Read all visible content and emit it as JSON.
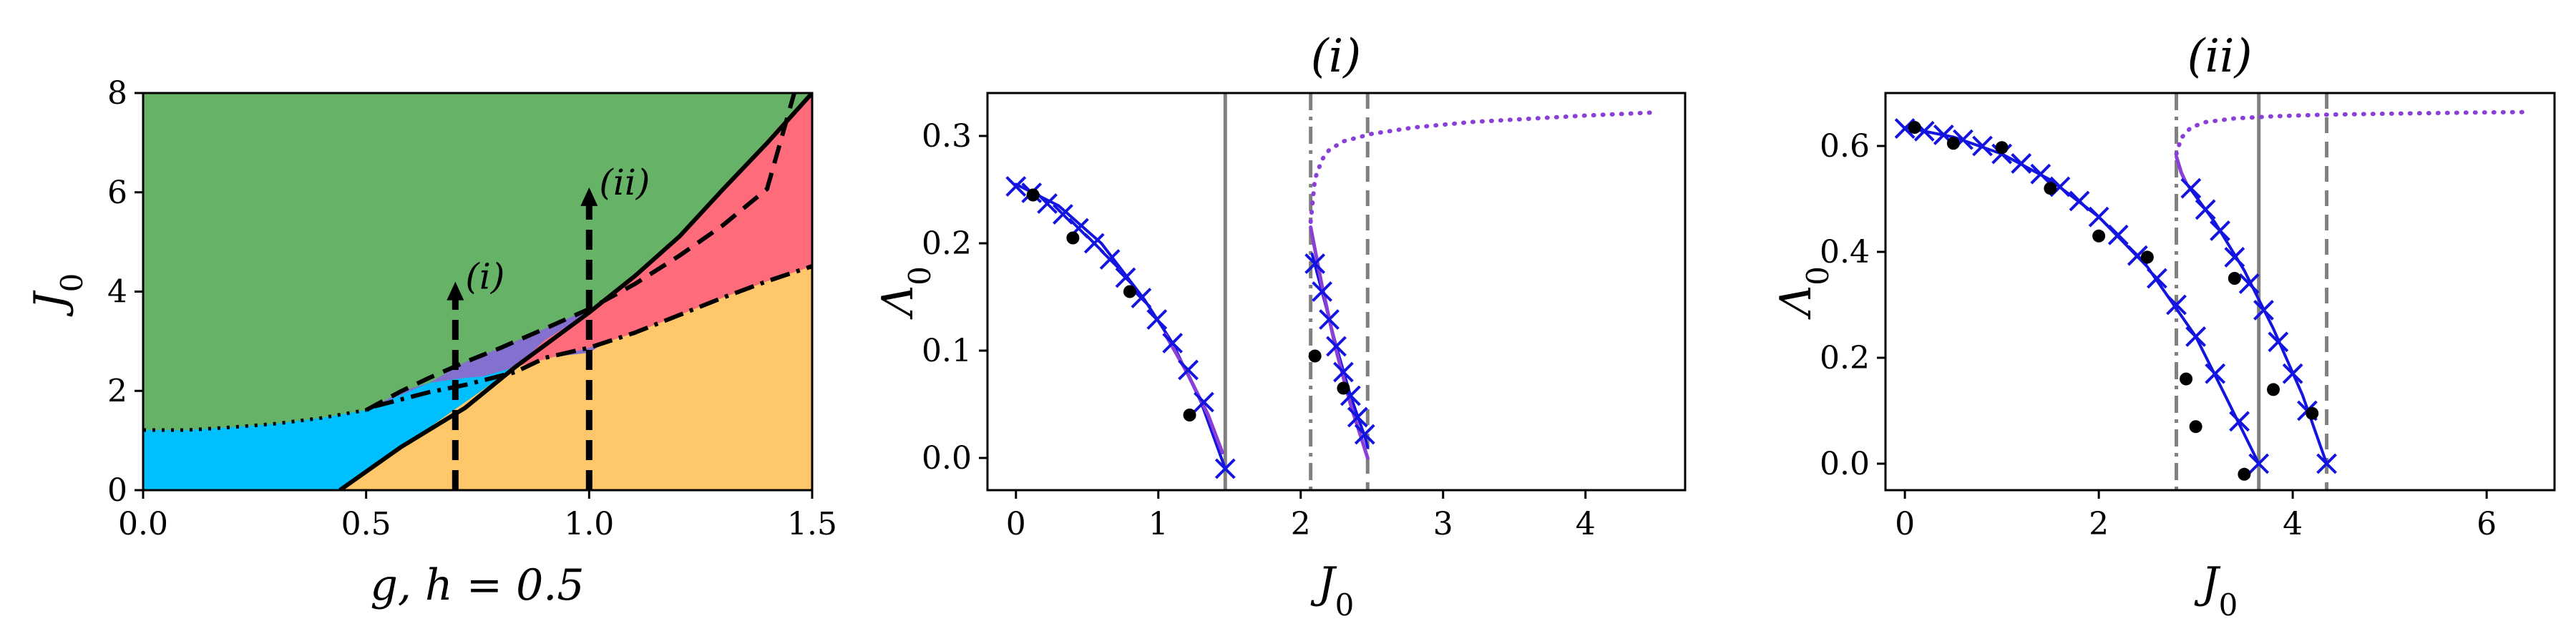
{
  "chart_data": [
    {
      "type": "area",
      "xlabel": "g, h = 0.5",
      "ylabel": "J_0",
      "xlim": [
        0.0,
        1.5
      ],
      "ylim": [
        0,
        8
      ],
      "xticks": [
        "0.0",
        "0.5",
        "1.0",
        "1.5"
      ],
      "yticks": [
        "0",
        "2",
        "4",
        "6",
        "8"
      ],
      "colors": {
        "green": "#66b266",
        "blue": "#00bfff",
        "orange": "#fdc76a",
        "red": "#fe6b7a",
        "purple": "#8470cf"
      },
      "annotations": [
        {
          "label": "(i)",
          "x": 0.7,
          "y_start": 0,
          "y_end": 4.2
        },
        {
          "label": "(ii)",
          "x": 1.0,
          "y_start": 0,
          "y_end": 6.1
        }
      ]
    },
    {
      "type": "line",
      "title": "(i)",
      "xlabel": "J_0",
      "ylabel": "Λ_0",
      "xlim": [
        -0.2,
        4.7
      ],
      "ylim": [
        -0.03,
        0.34
      ],
      "xticks": [
        "0",
        "1",
        "2",
        "3",
        "4"
      ],
      "yticks": [
        "0.0",
        "0.1",
        "0.2",
        "0.3"
      ],
      "vlines": [
        {
          "x": 1.47,
          "style": "solid"
        },
        {
          "x": 2.07,
          "style": "dashdot"
        },
        {
          "x": 2.47,
          "style": "dashed"
        }
      ],
      "crosses": [
        {
          "x": 0.0,
          "y": 0.253
        },
        {
          "x": 0.11,
          "y": 0.247
        },
        {
          "x": 0.22,
          "y": 0.237
        },
        {
          "x": 0.33,
          "y": 0.227
        },
        {
          "x": 0.44,
          "y": 0.214
        },
        {
          "x": 0.55,
          "y": 0.2
        },
        {
          "x": 0.66,
          "y": 0.185
        },
        {
          "x": 0.77,
          "y": 0.168
        },
        {
          "x": 0.88,
          "y": 0.149
        },
        {
          "x": 0.99,
          "y": 0.129
        },
        {
          "x": 1.1,
          "y": 0.107
        },
        {
          "x": 1.21,
          "y": 0.082
        },
        {
          "x": 1.32,
          "y": 0.052
        },
        {
          "x": 1.47,
          "y": -0.01
        },
        {
          "x": 2.1,
          "y": 0.181
        },
        {
          "x": 2.15,
          "y": 0.155
        },
        {
          "x": 2.2,
          "y": 0.129
        },
        {
          "x": 2.25,
          "y": 0.104
        },
        {
          "x": 2.3,
          "y": 0.08
        },
        {
          "x": 2.35,
          "y": 0.058
        },
        {
          "x": 2.4,
          "y": 0.038
        },
        {
          "x": 2.45,
          "y": 0.022
        }
      ],
      "dots": [
        {
          "x": 0.12,
          "y": 0.245
        },
        {
          "x": 0.4,
          "y": 0.205
        },
        {
          "x": 0.8,
          "y": 0.155
        },
        {
          "x": 1.22,
          "y": 0.04
        },
        {
          "x": 2.1,
          "y": 0.095
        },
        {
          "x": 2.3,
          "y": 0.065
        }
      ],
      "series": [
        {
          "style": "solid-blue",
          "x": [
            0,
            0.3,
            0.6,
            0.9,
            1.1,
            1.3,
            1.47
          ],
          "y": [
            0.255,
            0.235,
            0.2,
            0.148,
            0.107,
            0.052,
            -0.01
          ]
        },
        {
          "style": "solid-purple",
          "x": [
            1.05,
            1.2,
            1.35,
            1.45
          ],
          "y": [
            0.115,
            0.08,
            0.04,
            0.005
          ]
        },
        {
          "style": "solid-blue",
          "x": [
            2.08,
            2.15,
            2.25,
            2.35,
            2.45,
            2.47
          ],
          "y": [
            0.19,
            0.155,
            0.104,
            0.058,
            0.02,
            0.01
          ]
        },
        {
          "style": "solid-purple",
          "x": [
            2.07,
            2.15,
            2.25,
            2.35,
            2.47
          ],
          "y": [
            0.215,
            0.16,
            0.1,
            0.05,
            0.0
          ]
        },
        {
          "style": "dotted-purple",
          "x": [
            2.07,
            2.1,
            2.15,
            2.2,
            2.3,
            2.5,
            2.8,
            3.2,
            3.6,
            4.0,
            4.5
          ],
          "y": [
            0.22,
            0.26,
            0.278,
            0.287,
            0.295,
            0.302,
            0.308,
            0.313,
            0.316,
            0.319,
            0.322
          ]
        }
      ]
    },
    {
      "type": "line",
      "title": "(ii)",
      "xlabel": "J_0",
      "ylabel": "Λ_0",
      "xlim": [
        -0.2,
        6.7
      ],
      "ylim": [
        -0.05,
        0.7
      ],
      "xticks": [
        "0",
        "2",
        "4",
        "6"
      ],
      "yticks": [
        "0.0",
        "0.2",
        "0.4",
        "0.6"
      ],
      "vlines": [
        {
          "x": 2.8,
          "style": "dashdot"
        },
        {
          "x": 3.65,
          "style": "solid"
        },
        {
          "x": 4.35,
          "style": "dashed"
        }
      ],
      "crosses": [
        {
          "x": 0.0,
          "y": 0.633
        },
        {
          "x": 0.2,
          "y": 0.628
        },
        {
          "x": 0.4,
          "y": 0.621
        },
        {
          "x": 0.6,
          "y": 0.612
        },
        {
          "x": 0.8,
          "y": 0.6
        },
        {
          "x": 1.0,
          "y": 0.585
        },
        {
          "x": 1.2,
          "y": 0.567
        },
        {
          "x": 1.4,
          "y": 0.547
        },
        {
          "x": 1.6,
          "y": 0.523
        },
        {
          "x": 1.8,
          "y": 0.496
        },
        {
          "x": 2.0,
          "y": 0.466
        },
        {
          "x": 2.2,
          "y": 0.432
        },
        {
          "x": 2.4,
          "y": 0.393
        },
        {
          "x": 2.6,
          "y": 0.35
        },
        {
          "x": 2.8,
          "y": 0.3
        },
        {
          "x": 3.0,
          "y": 0.24
        },
        {
          "x": 3.2,
          "y": 0.17
        },
        {
          "x": 3.45,
          "y": 0.08
        },
        {
          "x": 3.65,
          "y": 0.0
        },
        {
          "x": 2.95,
          "y": 0.52
        },
        {
          "x": 3.1,
          "y": 0.48
        },
        {
          "x": 3.25,
          "y": 0.44
        },
        {
          "x": 3.4,
          "y": 0.39
        },
        {
          "x": 3.55,
          "y": 0.34
        },
        {
          "x": 3.7,
          "y": 0.29
        },
        {
          "x": 3.85,
          "y": 0.23
        },
        {
          "x": 4.0,
          "y": 0.17
        },
        {
          "x": 4.15,
          "y": 0.1
        },
        {
          "x": 4.35,
          "y": 0.0
        }
      ],
      "dots": [
        {
          "x": 0.1,
          "y": 0.635
        },
        {
          "x": 0.5,
          "y": 0.605
        },
        {
          "x": 1.0,
          "y": 0.597
        },
        {
          "x": 1.5,
          "y": 0.52
        },
        {
          "x": 2.0,
          "y": 0.43
        },
        {
          "x": 2.5,
          "y": 0.39
        },
        {
          "x": 2.9,
          "y": 0.16
        },
        {
          "x": 3.0,
          "y": 0.07
        },
        {
          "x": 3.4,
          "y": 0.35
        },
        {
          "x": 3.5,
          "y": -0.02
        },
        {
          "x": 3.8,
          "y": 0.14
        },
        {
          "x": 4.2,
          "y": 0.095
        }
      ],
      "series": [
        {
          "style": "solid-blue",
          "x": [
            0,
            0.5,
            1.0,
            1.5,
            2.0,
            2.5,
            3.0,
            3.3,
            3.65
          ],
          "y": [
            0.635,
            0.617,
            0.585,
            0.536,
            0.466,
            0.372,
            0.24,
            0.13,
            0.0
          ]
        },
        {
          "style": "solid-purple",
          "x": [
            2.8,
            2.85,
            2.9
          ],
          "y": [
            0.58,
            0.55,
            0.53
          ]
        },
        {
          "style": "solid-blue",
          "x": [
            2.9,
            3.2,
            3.5,
            3.8,
            4.1,
            4.35
          ],
          "y": [
            0.53,
            0.455,
            0.365,
            0.255,
            0.13,
            0.0
          ]
        },
        {
          "style": "dotted-purple",
          "x": [
            2.8,
            2.85,
            2.95,
            3.1,
            3.4,
            3.8,
            4.3,
            5.0,
            5.8,
            6.4
          ],
          "y": [
            0.585,
            0.615,
            0.635,
            0.645,
            0.652,
            0.656,
            0.659,
            0.661,
            0.663,
            0.664
          ]
        }
      ]
    }
  ]
}
